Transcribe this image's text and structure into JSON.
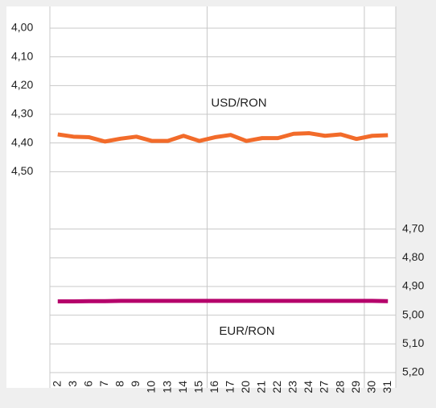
{
  "chart_data": {
    "type": "line",
    "categories": [
      "2",
      "3",
      "6",
      "7",
      "8",
      "9",
      "10",
      "13",
      "14",
      "15",
      "16",
      "17",
      "20",
      "21",
      "22",
      "23",
      "24",
      "27",
      "28",
      "29",
      "30",
      "31"
    ],
    "series": [
      {
        "name": "USD/RON",
        "color": "#f26b2a",
        "axis": "y",
        "values": [
          4.37,
          4.378,
          4.38,
          4.395,
          4.385,
          4.378,
          4.393,
          4.393,
          4.375,
          4.393,
          4.38,
          4.372,
          4.393,
          4.383,
          4.383,
          4.368,
          4.366,
          4.375,
          4.37,
          4.386,
          4.375,
          4.373
        ]
      },
      {
        "name": "EUR/RON",
        "color": "#b5006b",
        "axis": "y2",
        "values": [
          4.952,
          4.952,
          4.951,
          4.951,
          4.95,
          4.95,
          4.95,
          4.95,
          4.95,
          4.95,
          4.95,
          4.95,
          4.95,
          4.95,
          4.95,
          4.95,
          4.95,
          4.95,
          4.95,
          4.95,
          4.95,
          4.951
        ]
      }
    ],
    "ylim": [
      4.0,
      5.2
    ],
    "inverted": true,
    "yticks": [
      {
        "value": 4.0,
        "label": "4,00"
      },
      {
        "value": 4.1,
        "label": "4,10"
      },
      {
        "value": 4.2,
        "label": "4,20"
      },
      {
        "value": 4.3,
        "label": "4,30"
      },
      {
        "value": 4.4,
        "label": "4,40"
      },
      {
        "value": 4.5,
        "label": "4,50"
      }
    ],
    "y2lim": [
      4.0,
      5.2
    ],
    "y2ticks": [
      {
        "value": 4.7,
        "label": "4,70"
      },
      {
        "value": 4.8,
        "label": "4,80"
      },
      {
        "value": 4.9,
        "label": "4,90"
      },
      {
        "value": 5.0,
        "label": "5,00"
      },
      {
        "value": 5.1,
        "label": "5,10"
      },
      {
        "value": 5.2,
        "label": "5,20"
      }
    ],
    "grid": true
  }
}
